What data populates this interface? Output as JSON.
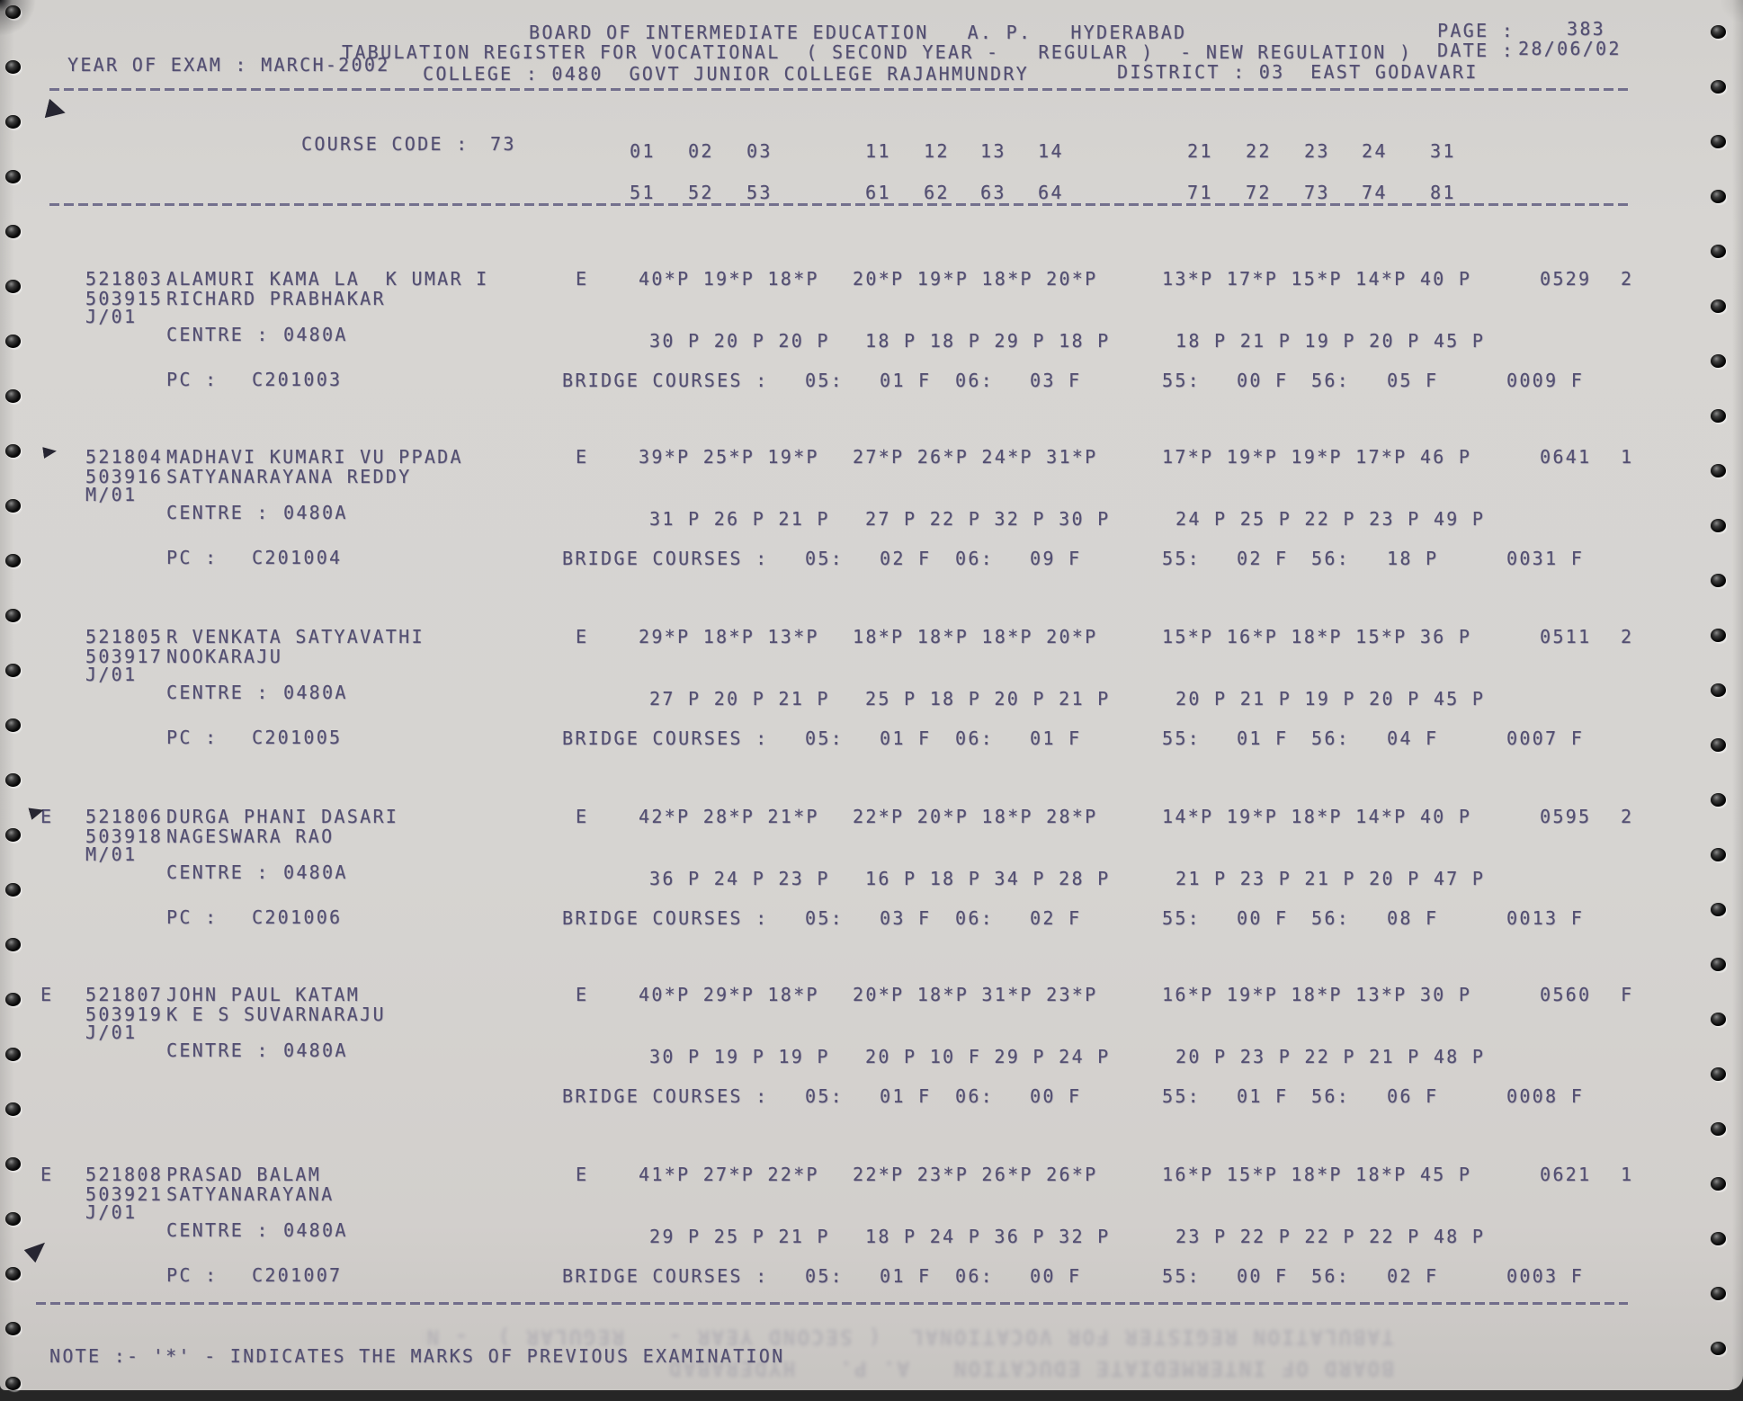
{
  "colors": {
    "ink": "#534f72",
    "paper": "#d6d4d1"
  },
  "header": {
    "title1": "BOARD OF INTERMEDIATE EDUCATION   A. P.   HYDERABAD",
    "page_label": "PAGE :",
    "page_value": "383",
    "title2_main": "TABULATION REGISTER FOR VOCATIONAL  ( SECOND YEAR -   REGULAR )  - NEW REGULATION )",
    "date_label": "DATE :",
    "date_value": "28/06/02",
    "year_of_exam": "YEAR OF EXAM : MARCH-2002",
    "college": "COLLEGE : 0480  GOVT JUNIOR COLLEGE RAJAHMUNDRY",
    "district": "DISTRICT : 03  EAST GODAVARI"
  },
  "course": {
    "label": "COURSE CODE :",
    "value": "73",
    "codes_row1": [
      "01",
      "02",
      "03",
      "11",
      "12",
      "13",
      "14",
      "21",
      "22",
      "23",
      "24",
      "31"
    ],
    "codes_row2": [
      "51",
      "52",
      "53",
      "61",
      "62",
      "63",
      "64",
      "71",
      "72",
      "73",
      "74",
      "81"
    ]
  },
  "labels": {
    "centre": "CENTRE :",
    "pc": "PC :",
    "bridge": "BRIDGE COURSES :",
    "b05": "05:",
    "b06": "06:",
    "b55": "55:",
    "b56": "56:"
  },
  "students": [
    {
      "flag": "",
      "reg1": "521803",
      "name1": "ALAMURI KAMA LA  K UMAR I",
      "reg2": "503915",
      "name2": "RICHARD PRABHAKAR",
      "group": "J/01",
      "medium": "E",
      "m1": [
        "40*P 19*P 18*P",
        "20*P 19*P 18*P 20*P",
        "13*P 17*P 15*P 14*P 40 P"
      ],
      "total": "0529",
      "result": "2",
      "centre": "0480A",
      "m2": [
        "30 P 20 P 20 P",
        "18 P 18 P 29 P 18 P",
        "18 P 21 P 19 P 20 P 45 P"
      ],
      "pc_label": "PC :",
      "pc": "C201003",
      "bridge": {
        "v05": "01 F",
        "v06": "03 F",
        "v55": "00 F",
        "v56": "05 F",
        "total": "0009 F"
      }
    },
    {
      "flag": "",
      "reg1": "521804",
      "name1": "MADHAVI KUMARI VU PPADA",
      "reg2": "503916",
      "name2": "SATYANARAYANA REDDY",
      "group": "M/01",
      "medium": "E",
      "m1": [
        "39*P 25*P 19*P",
        "27*P 26*P 24*P 31*P",
        "17*P 19*P 19*P 17*P 46 P"
      ],
      "total": "0641",
      "result": "1",
      "centre": "0480A",
      "m2": [
        "31 P 26 P 21 P",
        "27 P 22 P 32 P 30 P",
        "24 P 25 P 22 P 23 P 49 P"
      ],
      "pc_label": "PC :",
      "pc": "C201004",
      "bridge": {
        "v05": "02 F",
        "v06": "09 F",
        "v55": "02 F",
        "v56": "18 P",
        "total": "0031 F"
      }
    },
    {
      "flag": "",
      "reg1": "521805",
      "name1": "R VENKATA SATYAVATHI",
      "reg2": "503917",
      "name2": "NOOKARAJU",
      "group": "J/01",
      "medium": "E",
      "m1": [
        "29*P 18*P 13*P",
        "18*P 18*P 18*P 20*P",
        "15*P 16*P 18*P 15*P 36 P"
      ],
      "total": "0511",
      "result": "2",
      "centre": "0480A",
      "m2": [
        "27 P 20 P 21 P",
        "25 P 18 P 20 P 21 P",
        "20 P 21 P 19 P 20 P 45 P"
      ],
      "pc_label": "PC :",
      "pc": "C201005",
      "bridge": {
        "v05": "01 F",
        "v06": "01 F",
        "v55": "01 F",
        "v56": "04 F",
        "total": "0007 F"
      }
    },
    {
      "flag": "E",
      "reg1": "521806",
      "name1": "DURGA PHANI DASARI",
      "reg2": "503918",
      "name2": "NAGESWARA RAO",
      "group": "M/01",
      "medium": "E",
      "m1": [
        "42*P 28*P 21*P",
        "22*P 20*P 18*P 28*P",
        "14*P 19*P 18*P 14*P 40 P"
      ],
      "total": "0595",
      "result": "2",
      "centre": "0480A",
      "m2": [
        "36 P 24 P 23 P",
        "16 P 18 P 34 P 28 P",
        "21 P 23 P 21 P 20 P 47 P"
      ],
      "pc_label": "PC :",
      "pc": "C201006",
      "bridge": {
        "v05": "03 F",
        "v06": "02 F",
        "v55": "00 F",
        "v56": "08 F",
        "total": "0013 F"
      }
    },
    {
      "flag": "E",
      "reg1": "521807",
      "name1": "JOHN PAUL KATAM",
      "reg2": "503919",
      "name2": "K E S SUVARNARAJU",
      "group": "J/01",
      "medium": "E",
      "m1": [
        "40*P 29*P 18*P",
        "20*P 18*P 31*P 23*P",
        "16*P 19*P 18*P 13*P 30 P"
      ],
      "total": "0560",
      "result": "F",
      "centre": "0480A",
      "m2": [
        "30 P 19 P 19 P",
        "20 P 10 F 29 P 24 P",
        "20 P 23 P 22 P 21 P 48 P"
      ],
      "bridge": {
        "v05": "01 F",
        "v06": "00 F",
        "v55": "01 F",
        "v56": "06 F",
        "total": "0008 F"
      }
    },
    {
      "flag": "E",
      "reg1": "521808",
      "name1": "PRASAD BALAM",
      "reg2": "503921",
      "name2": "SATYANARAYANA",
      "group": "J/01",
      "medium": "E",
      "m1": [
        "41*P 27*P 22*P",
        "22*P 23*P 26*P 26*P",
        "16*P 15*P 18*P 18*P 45 P"
      ],
      "total": "0621",
      "result": "1",
      "centre": "0480A",
      "m2": [
        "29 P 25 P 21 P",
        "18 P 24 P 36 P 32 P",
        "23 P 22 P 22 P 22 P 48 P"
      ],
      "pc_label": "PC :",
      "pc": "C201007",
      "bridge": {
        "v05": "01 F",
        "v06": "00 F",
        "v55": "00 F",
        "v56": "02 F",
        "total": "0003 F"
      }
    }
  ],
  "note": "NOTE :- '*' - INDICATES THE MARKS OF PREVIOUS EXAMINATION"
}
